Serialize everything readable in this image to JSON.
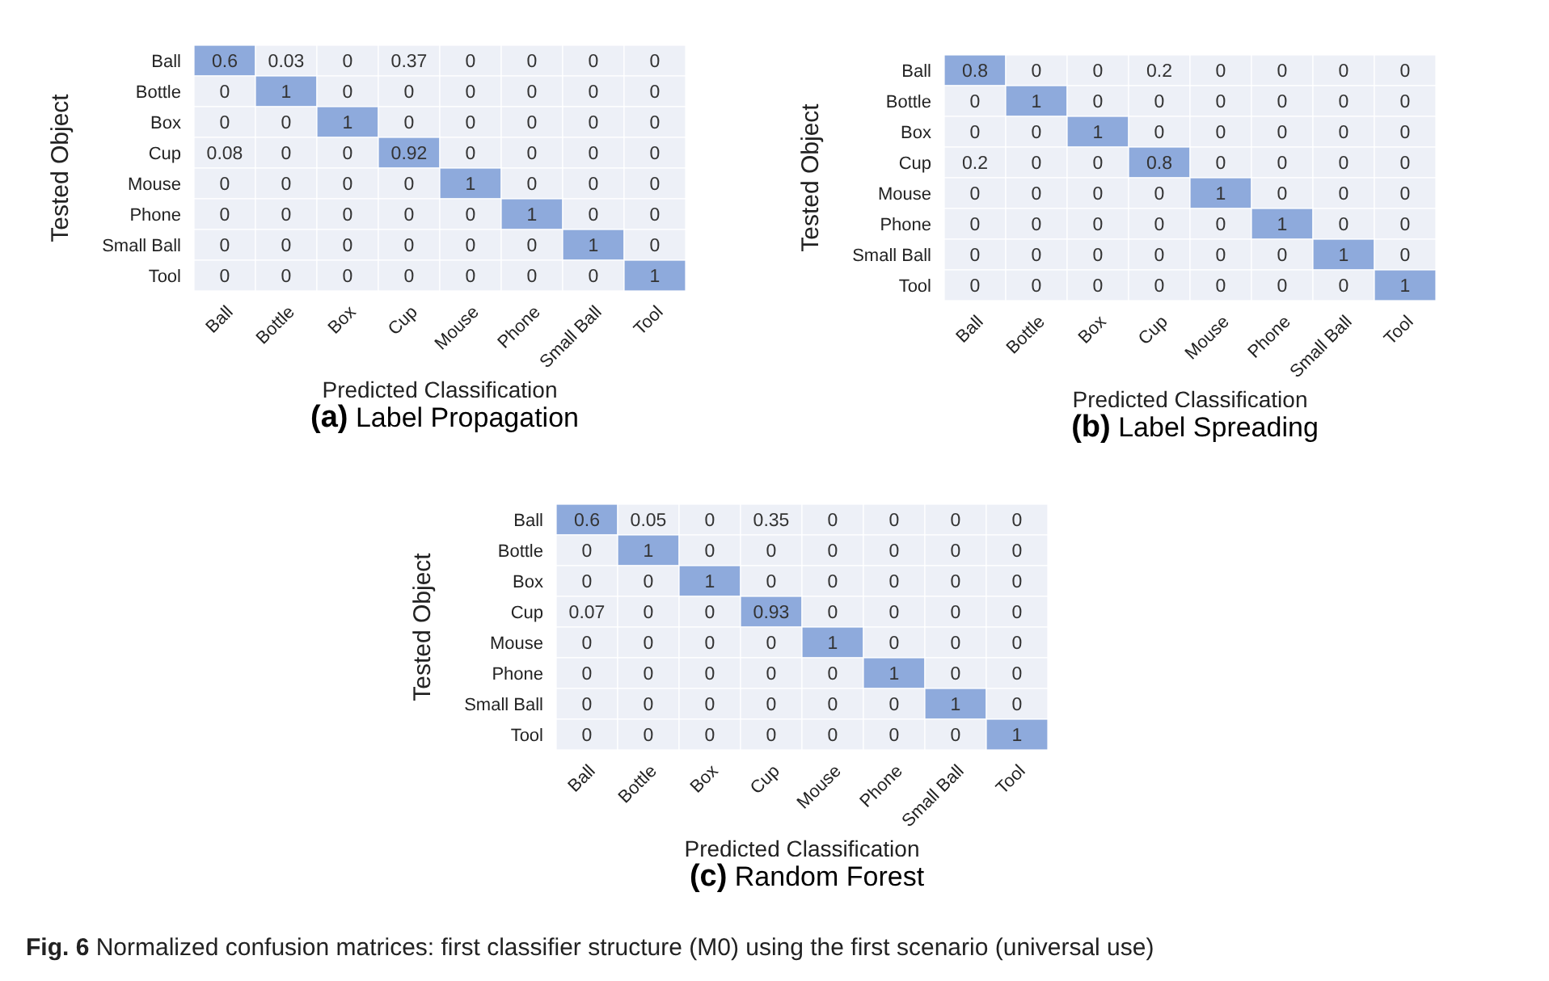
{
  "chart_data": [
    {
      "type": "heatmap",
      "data_labels": true,
      "title": "(a) Label Propagation",
      "xlabel": "Predicted Classification",
      "ylabel": "Tested Object",
      "categories": [
        "Ball",
        "Bottle",
        "Box",
        "Cup",
        "Mouse",
        "Phone",
        "Small Ball",
        "Tool"
      ],
      "y_categories": [
        "Ball",
        "Bottle",
        "Box",
        "Cup",
        "Mouse",
        "Phone",
        "Small Ball",
        "Tool"
      ],
      "colors": [
        "#edf0f7",
        "#8eaadc"
      ],
      "cells": [
        [
          0.6,
          0.03,
          0,
          0.37,
          0,
          0,
          0,
          0
        ],
        [
          0,
          1,
          0,
          0,
          0,
          0,
          0,
          0
        ],
        [
          0,
          0,
          1,
          0,
          0,
          0,
          0,
          0
        ],
        [
          0.08,
          0,
          0,
          0.92,
          0,
          0,
          0,
          0
        ],
        [
          0,
          0,
          0,
          0,
          1,
          0,
          0,
          0
        ],
        [
          0,
          0,
          0,
          0,
          0,
          1,
          0,
          0
        ],
        [
          0,
          0,
          0,
          0,
          0,
          0,
          1,
          0
        ],
        [
          0,
          0,
          0,
          0,
          0,
          0,
          0,
          1
        ]
      ]
    },
    {
      "type": "heatmap",
      "data_labels": true,
      "title": "(b) Label Spreading",
      "xlabel": "Predicted Classification",
      "ylabel": "Tested Object",
      "categories": [
        "Ball",
        "Bottle",
        "Box",
        "Cup",
        "Mouse",
        "Phone",
        "Small Ball",
        "Tool"
      ],
      "y_categories": [
        "Ball",
        "Bottle",
        "Box",
        "Cup",
        "Mouse",
        "Phone",
        "Small Ball",
        "Tool"
      ],
      "colors": [
        "#edf0f7",
        "#8eaadc"
      ],
      "cells": [
        [
          0.8,
          0,
          0,
          0.2,
          0,
          0,
          0,
          0
        ],
        [
          0,
          1,
          0,
          0,
          0,
          0,
          0,
          0
        ],
        [
          0,
          0,
          1,
          0,
          0,
          0,
          0,
          0
        ],
        [
          0.2,
          0,
          0,
          0.8,
          0,
          0,
          0,
          0
        ],
        [
          0,
          0,
          0,
          0,
          1,
          0,
          0,
          0
        ],
        [
          0,
          0,
          0,
          0,
          0,
          1,
          0,
          0
        ],
        [
          0,
          0,
          0,
          0,
          0,
          0,
          1,
          0
        ],
        [
          0,
          0,
          0,
          0,
          0,
          0,
          0,
          1
        ]
      ]
    },
    {
      "type": "heatmap",
      "data_labels": true,
      "title": "(c) Random Forest",
      "xlabel": "Predicted Classification",
      "ylabel": "Tested Object",
      "categories": [
        "Ball",
        "Bottle",
        "Box",
        "Cup",
        "Mouse",
        "Phone",
        "Small Ball",
        "Tool"
      ],
      "y_categories": [
        "Ball",
        "Bottle",
        "Box",
        "Cup",
        "Mouse",
        "Phone",
        "Small Ball",
        "Tool"
      ],
      "colors": [
        "#edf0f7",
        "#8eaadc"
      ],
      "cells": [
        [
          0.6,
          0.05,
          0,
          0.35,
          0,
          0,
          0,
          0
        ],
        [
          0,
          1,
          0,
          0,
          0,
          0,
          0,
          0
        ],
        [
          0,
          0,
          1,
          0,
          0,
          0,
          0,
          0
        ],
        [
          0.07,
          0,
          0,
          0.93,
          0,
          0,
          0,
          0
        ],
        [
          0,
          0,
          0,
          0,
          1,
          0,
          0,
          0
        ],
        [
          0,
          0,
          0,
          0,
          0,
          1,
          0,
          0
        ],
        [
          0,
          0,
          0,
          0,
          0,
          0,
          1,
          0
        ],
        [
          0,
          0,
          0,
          0,
          0,
          0,
          0,
          1
        ]
      ],
      "annotations": [
        "Fig. 6 Normalized confusion matrices: first classifier structure (M0) using the first scenario (universal use)"
      ]
    }
  ]
}
